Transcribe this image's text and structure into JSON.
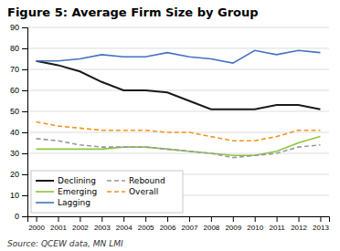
{
  "chart_data": {
    "type": "line",
    "title": "Figure 5: Average Firm Size by Group",
    "annotations": [
      "Source: QCEW data, MN LMI"
    ],
    "x": [
      2000,
      2001,
      2002,
      2003,
      2004,
      2005,
      2006,
      2007,
      2008,
      2009,
      2010,
      2011,
      2012,
      2013
    ],
    "series": [
      {
        "name": "Declining",
        "color": "#1a1a1a",
        "line_style": "solid",
        "values": [
          74,
          72,
          69,
          64,
          60,
          60,
          59,
          55,
          51,
          51,
          51,
          53,
          53,
          51
        ]
      },
      {
        "name": "Emerging",
        "color": "#8dc63f",
        "line_style": "solid",
        "values": [
          32,
          32,
          32,
          32,
          33,
          33,
          32,
          31,
          30,
          29,
          29,
          31,
          35,
          38
        ]
      },
      {
        "name": "Lagging",
        "color": "#4472c4",
        "line_style": "solid",
        "values": [
          74,
          74,
          75,
          77,
          76,
          76,
          78,
          76,
          75,
          73,
          79,
          77,
          79,
          78
        ]
      },
      {
        "name": "Rebound",
        "color": "#999999",
        "line_style": "dashed",
        "values": [
          37,
          36,
          34,
          33,
          33,
          33,
          32,
          31,
          30,
          28,
          29,
          30,
          33,
          34
        ]
      },
      {
        "name": "Overall",
        "color": "#f7941d",
        "line_style": "dashed",
        "values": [
          45,
          43,
          42,
          41,
          41,
          41,
          40,
          40,
          38,
          36,
          36,
          38,
          41,
          41
        ]
      }
    ],
    "xlim": [
      1999.6,
      2013.4
    ],
    "xticks": [
      2000,
      2001,
      2002,
      2003,
      2004,
      2005,
      2006,
      2007,
      2008,
      2009,
      2010,
      2011,
      2012,
      2013
    ],
    "ylim": [
      0,
      90
    ],
    "yticks": [
      0,
      10,
      20,
      30,
      40,
      50,
      60,
      70,
      80,
      90
    ],
    "grid": true,
    "legend": "lower left"
  }
}
